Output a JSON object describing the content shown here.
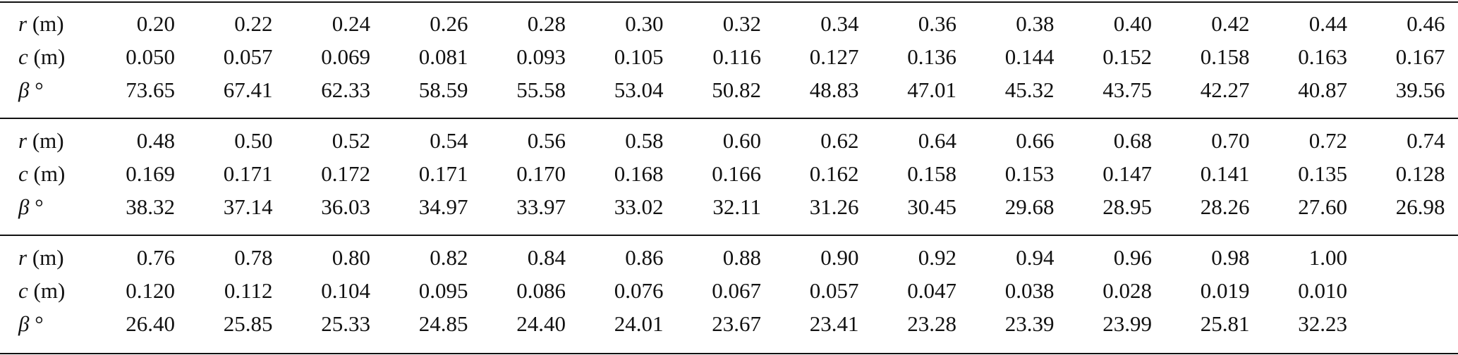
{
  "table": {
    "blocks": [
      {
        "rows": [
          {
            "label": {
              "symbol": "r",
              "unit": "(m)"
            },
            "values": [
              "0.20",
              "0.22",
              "0.24",
              "0.26",
              "0.28",
              "0.30",
              "0.32",
              "0.34",
              "0.36",
              "0.38",
              "0.40",
              "0.42",
              "0.44",
              "0.46"
            ]
          },
          {
            "label": {
              "symbol": "c",
              "unit": "(m)"
            },
            "values": [
              "0.050",
              "0.057",
              "0.069",
              "0.081",
              "0.093",
              "0.105",
              "0.116",
              "0.127",
              "0.136",
              "0.144",
              "0.152",
              "0.158",
              "0.163",
              "0.167"
            ]
          },
          {
            "label": {
              "symbol": "β",
              "unit": "°"
            },
            "values": [
              "73.65",
              "67.41",
              "62.33",
              "58.59",
              "55.58",
              "53.04",
              "50.82",
              "48.83",
              "47.01",
              "45.32",
              "43.75",
              "42.27",
              "40.87",
              "39.56"
            ]
          }
        ]
      },
      {
        "rows": [
          {
            "label": {
              "symbol": "r",
              "unit": "(m)"
            },
            "values": [
              "0.48",
              "0.50",
              "0.52",
              "0.54",
              "0.56",
              "0.58",
              "0.60",
              "0.62",
              "0.64",
              "0.66",
              "0.68",
              "0.70",
              "0.72",
              "0.74"
            ]
          },
          {
            "label": {
              "symbol": "c",
              "unit": "(m)"
            },
            "values": [
              "0.169",
              "0.171",
              "0.172",
              "0.171",
              "0.170",
              "0.168",
              "0.166",
              "0.162",
              "0.158",
              "0.153",
              "0.147",
              "0.141",
              "0.135",
              "0.128"
            ]
          },
          {
            "label": {
              "symbol": "β",
              "unit": "°"
            },
            "values": [
              "38.32",
              "37.14",
              "36.03",
              "34.97",
              "33.97",
              "33.02",
              "32.11",
              "31.26",
              "30.45",
              "29.68",
              "28.95",
              "28.26",
              "27.60",
              "26.98"
            ]
          }
        ]
      },
      {
        "rows": [
          {
            "label": {
              "symbol": "r",
              "unit": "(m)"
            },
            "values": [
              "0.76",
              "0.78",
              "0.80",
              "0.82",
              "0.84",
              "0.86",
              "0.88",
              "0.90",
              "0.92",
              "0.94",
              "0.96",
              "0.98",
              "1.00"
            ]
          },
          {
            "label": {
              "symbol": "c",
              "unit": "(m)"
            },
            "values": [
              "0.120",
              "0.112",
              "0.104",
              "0.095",
              "0.086",
              "0.076",
              "0.067",
              "0.057",
              "0.047",
              "0.038",
              "0.028",
              "0.019",
              "0.010"
            ]
          },
          {
            "label": {
              "symbol": "β",
              "unit": "°"
            },
            "values": [
              "26.40",
              "25.85",
              "25.33",
              "24.85",
              "24.40",
              "24.01",
              "23.67",
              "23.41",
              "23.28",
              "23.39",
              "23.99",
              "25.81",
              "32.23"
            ]
          }
        ]
      }
    ]
  }
}
